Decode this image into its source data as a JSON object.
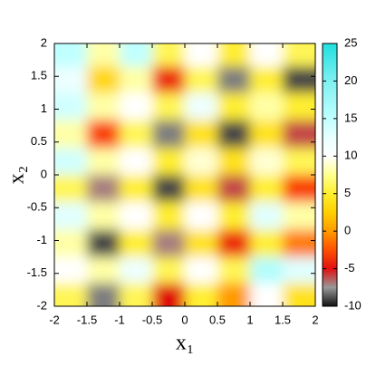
{
  "chart_data": {
    "type": "heatmap",
    "xlabel": "x₁",
    "ylabel": "x₂",
    "x": [
      -1.75,
      -1.25,
      -0.75,
      -0.25,
      0.25,
      0.75,
      1.25,
      1.75
    ],
    "y": [
      1.85,
      1.45,
      1.05,
      0.62,
      0.2,
      -0.2,
      -0.62,
      -1.05,
      -1.45,
      -1.85
    ],
    "values": [
      [
        15,
        8,
        15,
        6,
        10,
        5,
        10,
        6
      ],
      [
        12,
        3,
        8,
        -4,
        6,
        -8,
        5,
        -9
      ],
      [
        14,
        8,
        10,
        6,
        12,
        5,
        8,
        5
      ],
      [
        8,
        -3,
        6,
        -8,
        4,
        -9,
        4,
        -6
      ],
      [
        14,
        8,
        10,
        5,
        9,
        4,
        9,
        6
      ],
      [
        6,
        -7,
        5,
        -9,
        4,
        -6,
        5,
        -3
      ],
      [
        13,
        8,
        10,
        5,
        10,
        5,
        13,
        8
      ],
      [
        8,
        -9,
        5,
        -7,
        4,
        -4,
        5,
        -1
      ],
      [
        10,
        8,
        12,
        6,
        10,
        6,
        16,
        13
      ],
      [
        6,
        -8,
        6,
        -5,
        5,
        0,
        10,
        4
      ]
    ],
    "xlim": [
      -2,
      2
    ],
    "ylim": [
      -2,
      2
    ],
    "zlim": [
      -10,
      25
    ],
    "xticks": [
      -2,
      -1.5,
      -1,
      -0.5,
      0,
      0.5,
      1,
      1.5,
      2
    ],
    "yticks": [
      -2,
      -1.5,
      -1,
      -0.5,
      0,
      0.5,
      1,
      1.5,
      2
    ],
    "zticks": [
      -10,
      -5,
      0,
      5,
      10,
      15,
      20,
      25
    ],
    "colorscale": [
      "#111111",
      "#999999",
      "#e01010",
      "#ff5000",
      "#ff9a00",
      "#ffd000",
      "#ffee30",
      "#ffff90",
      "#ffffff",
      "#e8ffff",
      "#c0ffff",
      "#9ff7f7",
      "#7ff0f0",
      "#50e8e8",
      "#20e0e0"
    ]
  }
}
